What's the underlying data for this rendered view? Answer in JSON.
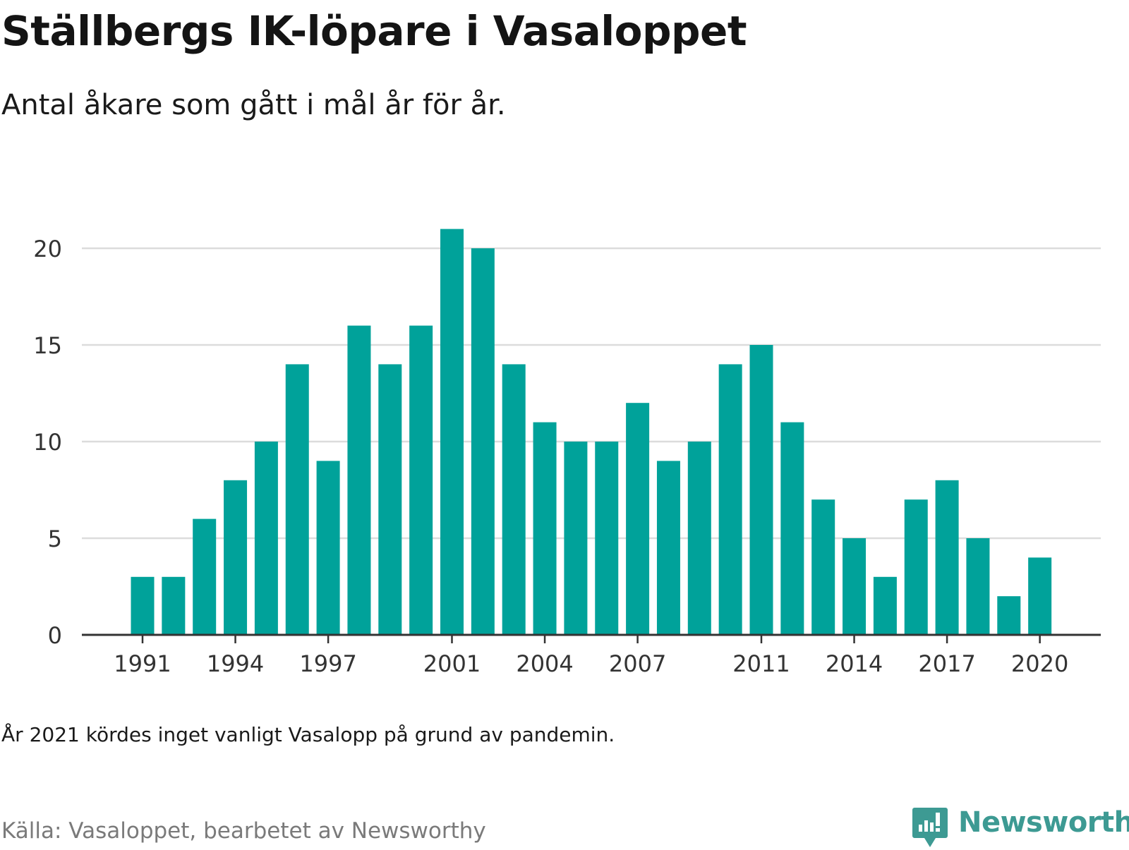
{
  "title": "Ställbergs IK-löpare i Vasaloppet",
  "subtitle": "Antal åkare som gått i mål år för år.",
  "note": "År 2021 kördes inget vanligt Vasalopp på grund av pandemin.",
  "source": "Källa: Vasaloppet, bearbetet av Newsworthy",
  "brand": {
    "name": "Newsworthy",
    "color": "#3d9a93"
  },
  "colors": {
    "bar": "#00a29a",
    "grid": "#dcdcdc",
    "axis": "#333333",
    "tick_text": "#333333"
  },
  "chart_data": {
    "type": "bar",
    "x": [
      1991,
      1992,
      1993,
      1994,
      1995,
      1996,
      1997,
      1998,
      1999,
      2000,
      2001,
      2002,
      2003,
      2004,
      2005,
      2006,
      2007,
      2008,
      2009,
      2010,
      2011,
      2012,
      2013,
      2014,
      2015,
      2016,
      2017,
      2018,
      2019,
      2020
    ],
    "values": [
      3,
      3,
      6,
      8,
      10,
      14,
      9,
      16,
      14,
      16,
      21,
      20,
      14,
      11,
      10,
      10,
      12,
      9,
      10,
      14,
      15,
      11,
      7,
      5,
      3,
      7,
      8,
      5,
      2,
      4
    ],
    "x_tick_labels": [
      1991,
      1994,
      1997,
      2001,
      2004,
      2007,
      2011,
      2014,
      2017,
      2020
    ],
    "y_ticks": [
      0,
      5,
      10,
      15,
      20
    ],
    "ylim": [
      0,
      21
    ],
    "xlabel": "",
    "ylabel": "",
    "grid": true,
    "legend": "none"
  }
}
